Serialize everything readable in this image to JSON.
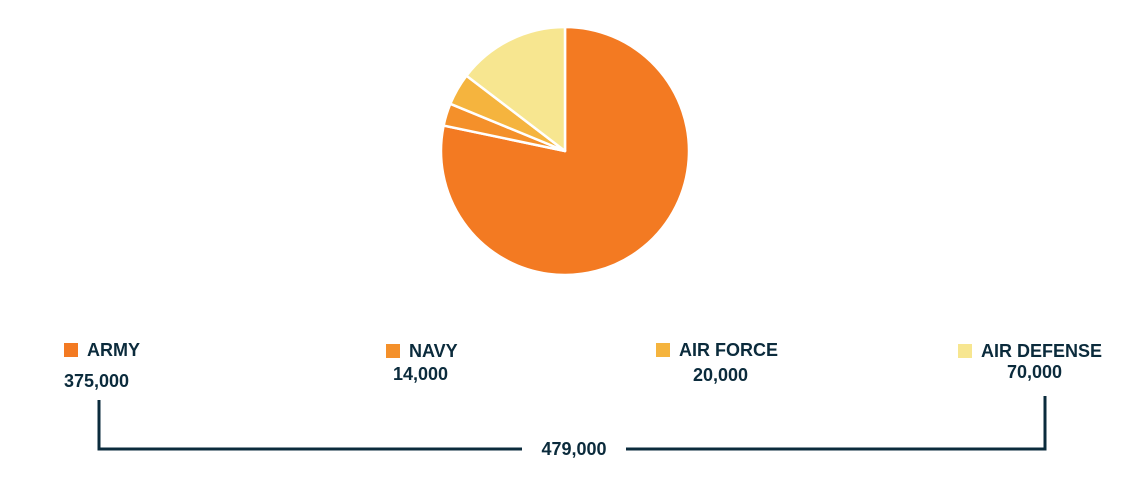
{
  "chart_data": {
    "type": "pie",
    "title": "",
    "categories": [
      "ARMY",
      "NAVY",
      "AIR FORCE",
      "AIR DEFENSE"
    ],
    "values": [
      375000,
      14000,
      20000,
      70000
    ],
    "value_labels": [
      "375,000",
      "14,000",
      "20,000",
      "70,000"
    ],
    "colors": [
      "#f37a22",
      "#f4902a",
      "#f5b43e",
      "#f7e690"
    ],
    "start_angle_deg": 0,
    "direction": "clockwise",
    "legend_placement": "bottom",
    "total": 479000,
    "total_label": "479,000"
  }
}
